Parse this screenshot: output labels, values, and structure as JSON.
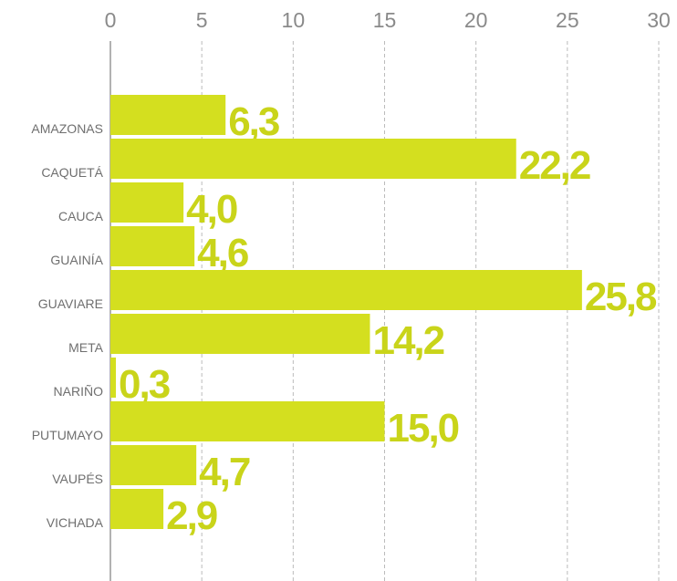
{
  "chart_data": {
    "type": "bar",
    "orientation": "horizontal",
    "categories": [
      "AMAZONAS",
      "CAQUETÁ",
      "CAUCA",
      "GUAINÍA",
      "GUAVIARE",
      "META",
      "NARIÑO",
      "PUTUMAYO",
      "VAUPÉS",
      "VICHADA"
    ],
    "values": [
      6.3,
      22.2,
      4.0,
      4.6,
      25.8,
      14.2,
      0.3,
      15.0,
      4.7,
      2.9
    ],
    "value_labels": [
      "6,3",
      "22,2",
      "4,0",
      "4,6",
      "25,8",
      "14,2",
      "0,3",
      "15,0",
      "4,7",
      "2,9"
    ],
    "color": "#d4df1f",
    "xlim": [
      0,
      30
    ],
    "xticks": [
      0,
      5,
      10,
      15,
      20,
      25,
      30
    ],
    "grid": true
  }
}
